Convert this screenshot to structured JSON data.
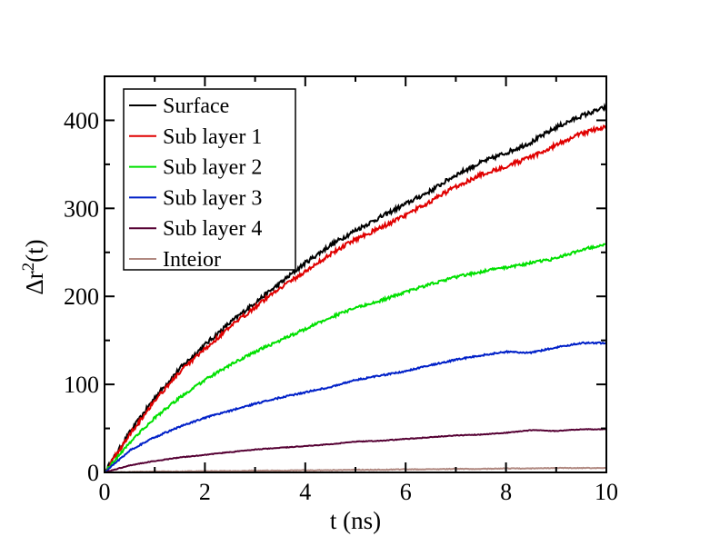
{
  "chart_data": {
    "type": "line",
    "title": "",
    "xlabel": "t (ns)",
    "ylabel": "Δr²(t)",
    "xlim": [
      0,
      10
    ],
    "ylim": [
      0,
      450
    ],
    "x_ticks": [
      0,
      2,
      4,
      6,
      8,
      10
    ],
    "y_ticks": [
      0,
      100,
      200,
      300,
      400
    ],
    "grid": false,
    "legend_position": "top-left",
    "x": [
      0,
      0.5,
      1,
      1.5,
      2,
      2.5,
      3,
      3.5,
      4,
      4.5,
      5,
      5.5,
      6,
      6.5,
      7,
      7.5,
      8,
      8.5,
      9,
      9.5,
      10
    ],
    "series": [
      {
        "name": "Surface",
        "color": "#000000",
        "values": [
          0,
          45,
          85,
          118,
          145,
          170,
          193,
          215,
          238,
          258,
          275,
          290,
          305,
          320,
          338,
          352,
          363,
          375,
          392,
          405,
          415
        ]
      },
      {
        "name": "Sub layer 1",
        "color": "#e00000",
        "values": [
          0,
          43,
          82,
          114,
          140,
          165,
          188,
          210,
          228,
          248,
          265,
          278,
          292,
          308,
          325,
          338,
          348,
          358,
          372,
          385,
          393
        ]
      },
      {
        "name": "Sub layer 2",
        "color": "#00e000",
        "values": [
          0,
          34,
          62,
          85,
          105,
          122,
          137,
          150,
          163,
          176,
          187,
          195,
          205,
          214,
          222,
          228,
          233,
          238,
          243,
          253,
          260
        ]
      },
      {
        "name": "Sub layer 3",
        "color": "#0020c8",
        "values": [
          0,
          25,
          40,
          52,
          62,
          70,
          78,
          85,
          91,
          97,
          105,
          110,
          115,
          122,
          128,
          133,
          137,
          136,
          142,
          147,
          147
        ]
      },
      {
        "name": "Sub layer 4",
        "color": "#550033",
        "values": [
          0,
          8,
          13,
          17,
          20,
          23,
          26,
          28,
          30,
          32,
          35,
          36,
          38,
          40,
          42,
          43,
          45,
          48,
          47,
          49,
          49
        ]
      },
      {
        "name": "Inteior",
        "color": "#b08880",
        "values": [
          0,
          0.5,
          1,
          1,
          1.5,
          1.5,
          2,
          2,
          2.5,
          2.5,
          3,
          3,
          3.5,
          3.5,
          4,
          4,
          4.5,
          4.5,
          5,
          5,
          5
        ]
      }
    ]
  }
}
